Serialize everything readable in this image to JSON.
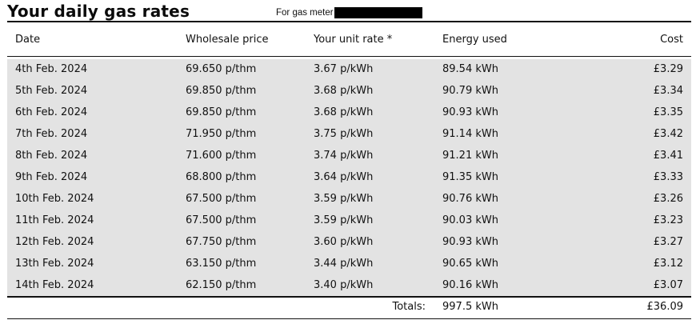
{
  "header": {
    "title": "Your daily gas rates",
    "meter_label": "For gas meter"
  },
  "table": {
    "columns": [
      "Date",
      "Wholesale price",
      "Your unit rate *",
      "Energy used",
      "Cost"
    ],
    "rows": [
      {
        "date": "4th Feb. 2024",
        "wholesale": "69.650 p/thm",
        "unit_rate": "3.67 p/kWh",
        "energy": "89.54 kWh",
        "cost": "£3.29"
      },
      {
        "date": "5th Feb. 2024",
        "wholesale": "69.850 p/thm",
        "unit_rate": "3.68 p/kWh",
        "energy": "90.79 kWh",
        "cost": "£3.34"
      },
      {
        "date": "6th Feb. 2024",
        "wholesale": "69.850 p/thm",
        "unit_rate": "3.68 p/kWh",
        "energy": "90.93 kWh",
        "cost": "£3.35"
      },
      {
        "date": "7th Feb. 2024",
        "wholesale": "71.950 p/thm",
        "unit_rate": "3.75 p/kWh",
        "energy": "91.14 kWh",
        "cost": "£3.42"
      },
      {
        "date": "8th Feb. 2024",
        "wholesale": "71.600 p/thm",
        "unit_rate": "3.74 p/kWh",
        "energy": "91.21 kWh",
        "cost": "£3.41"
      },
      {
        "date": "9th Feb. 2024",
        "wholesale": "68.800 p/thm",
        "unit_rate": "3.64 p/kWh",
        "energy": "91.35 kWh",
        "cost": "£3.33"
      },
      {
        "date": "10th Feb. 2024",
        "wholesale": "67.500 p/thm",
        "unit_rate": "3.59 p/kWh",
        "energy": "90.76 kWh",
        "cost": "£3.26"
      },
      {
        "date": "11th Feb. 2024",
        "wholesale": "67.500 p/thm",
        "unit_rate": "3.59 p/kWh",
        "energy": "90.03 kWh",
        "cost": "£3.23"
      },
      {
        "date": "12th Feb. 2024",
        "wholesale": "67.750 p/thm",
        "unit_rate": "3.60 p/kWh",
        "energy": "90.93 kWh",
        "cost": "£3.27"
      },
      {
        "date": "13th Feb. 2024",
        "wholesale": "63.150 p/thm",
        "unit_rate": "3.44 p/kWh",
        "energy": "90.65 kWh",
        "cost": "£3.12"
      },
      {
        "date": "14th Feb. 2024",
        "wholesale": "62.150 p/thm",
        "unit_rate": "3.40 p/kWh",
        "energy": "90.16 kWh",
        "cost": "£3.07"
      }
    ],
    "totals": {
      "label": "Totals:",
      "energy": "997.5 kWh",
      "cost": "£36.09"
    }
  },
  "colors": {
    "row_background": "#e3e3e3",
    "text": "#111111",
    "redaction": "#000000"
  }
}
